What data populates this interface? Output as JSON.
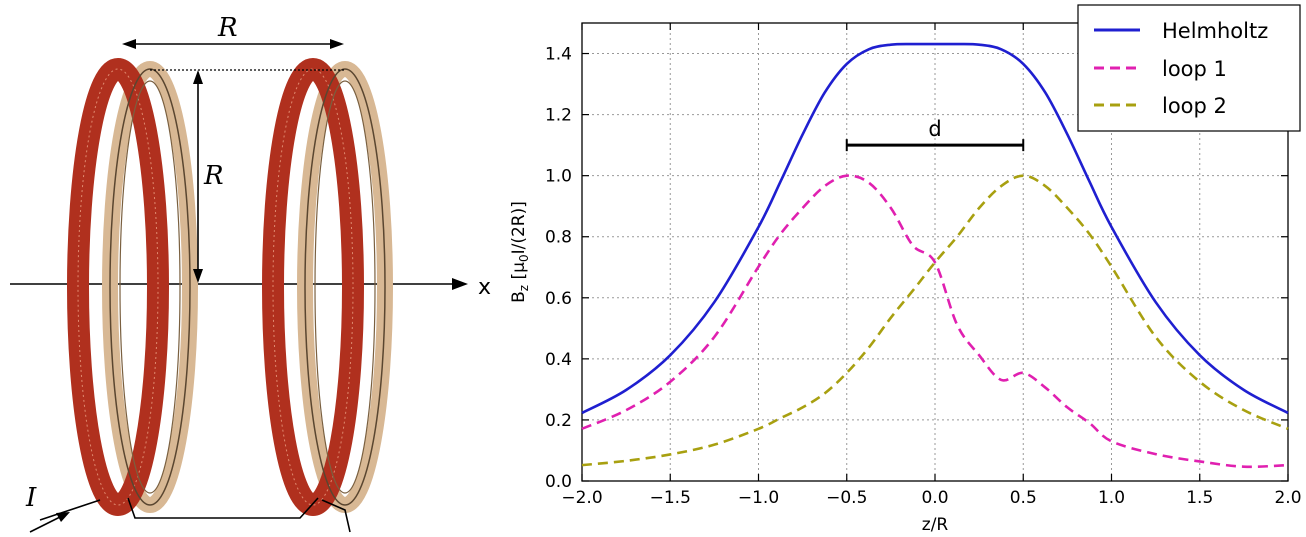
{
  "diagram": {
    "label_top_r": "R",
    "label_side_r": "R",
    "label_axis_x": "x",
    "label_current": "I",
    "colors": {
      "coil_wire": "#b0301e",
      "coil_frame": "#d8b894",
      "coil_edge": "#5a4630"
    }
  },
  "chart_data": {
    "type": "line",
    "xlabel": "z/R",
    "ylabel_main": "B",
    "ylabel_sub": "z",
    "ylabel_rest": " [μ",
    "ylabel_sub2": "0",
    "ylabel_end": "I/(2R)]",
    "xlim": [
      -2.0,
      2.0
    ],
    "ylim": [
      0.0,
      1.5
    ],
    "xticks": [
      -2.0,
      -1.5,
      -1.0,
      -0.5,
      0.0,
      0.5,
      1.0,
      1.5,
      2.0
    ],
    "xtick_labels": [
      "−2.0",
      "−1.5",
      "−1.0",
      "−0.5",
      "0.0",
      "0.5",
      "1.0",
      "1.5",
      "2.0"
    ],
    "yticks": [
      0.0,
      0.2,
      0.4,
      0.6,
      0.8,
      1.0,
      1.2,
      1.4
    ],
    "ytick_labels": [
      "0.0",
      "0.2",
      "0.4",
      "0.6",
      "0.8",
      "1.0",
      "1.2",
      "1.4"
    ],
    "grid": true,
    "legend_position": "top-right",
    "annotation": {
      "text": "d",
      "x_from": -0.5,
      "x_to": 0.5,
      "y": 1.1
    },
    "x": [
      -2.0,
      -1.75,
      -1.5,
      -1.25,
      -1.0,
      -0.875,
      -0.75,
      -0.625,
      -0.5,
      -0.375,
      -0.25,
      -0.125,
      0.0,
      0.125,
      0.25,
      0.375,
      0.5,
      0.625,
      0.75,
      0.875,
      1.0,
      1.25,
      1.5,
      1.75,
      2.0
    ],
    "series": [
      {
        "name": "Helmholtz",
        "color": "#1f1fd0",
        "dash": "solid",
        "values": [
          0.223,
          0.298,
          0.412,
          0.586,
          0.832,
          0.981,
          1.135,
          1.272,
          1.366,
          1.414,
          1.429,
          1.431,
          1.431,
          1.431,
          1.429,
          1.414,
          1.366,
          1.272,
          1.135,
          0.981,
          0.832,
          0.586,
          0.412,
          0.298,
          0.223
        ]
      },
      {
        "name": "loop 1",
        "color": "#e020b0",
        "dash": "dashed",
        "values": [
          0.171,
          0.232,
          0.325,
          0.472,
          0.702,
          0.809,
          0.894,
          0.966,
          1.0,
          0.977,
          0.894,
          0.771,
          0.716,
          0.512,
          0.412,
          0.331,
          0.354,
          0.306,
          0.241,
          0.19,
          0.13,
          0.088,
          0.064,
          0.047,
          0.052
        ]
      },
      {
        "name": "loop 2",
        "color": "#a8a010",
        "dash": "dashed",
        "values": [
          0.052,
          0.066,
          0.087,
          0.119,
          0.171,
          0.206,
          0.241,
          0.287,
          0.354,
          0.437,
          0.535,
          0.624,
          0.716,
          0.8,
          0.894,
          0.966,
          1.0,
          0.966,
          0.894,
          0.809,
          0.702,
          0.472,
          0.325,
          0.232,
          0.171
        ]
      }
    ]
  }
}
